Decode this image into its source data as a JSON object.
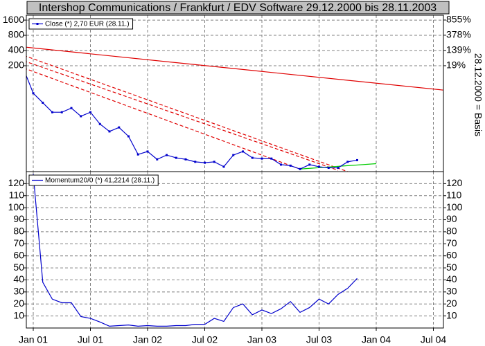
{
  "chart_data": [
    {
      "type": "line",
      "title": "Intershop Communications / Frankfurt / EDV Software 29.12.2000 bis 28.11.2003",
      "scale": "log",
      "grid": true,
      "legend": "top-left",
      "x": [
        "2000-12",
        "2001-01",
        "2001-02",
        "2001-03",
        "2001-04",
        "2001-05",
        "2001-06",
        "2001-07",
        "2001-08",
        "2001-09",
        "2001-10",
        "2001-11",
        "2001-12",
        "2002-01",
        "2002-02",
        "2002-03",
        "2002-04",
        "2002-05",
        "2002-06",
        "2002-07",
        "2002-08",
        "2002-09",
        "2002-10",
        "2002-11",
        "2002-12",
        "2003-01",
        "2003-02",
        "2003-03",
        "2003-04",
        "2003-05",
        "2003-06",
        "2003-07",
        "2003-08",
        "2003-09",
        "2003-10",
        "2003-11"
      ],
      "series": [
        {
          "name": "Close (*) 2,70 EUR (28.11.)",
          "color": "#0000cc",
          "marker": "square",
          "values": [
            170,
            57,
            37,
            24,
            24,
            29,
            20,
            24,
            14,
            10,
            12,
            8,
            3.5,
            4,
            2.8,
            3.4,
            3,
            2.8,
            2.5,
            2.4,
            2.5,
            2,
            3.4,
            4,
            3,
            2.9,
            2.9,
            2.2,
            2.1,
            1.8,
            2.2,
            2,
            1.9,
            1.9,
            2.5,
            2.7
          ]
        }
      ],
      "lines": [
        {
          "color": "#e00000",
          "style": "solid",
          "x": [
            "2000-12",
            "2004-08"
          ],
          "values": [
            470,
            66
          ]
        },
        {
          "color": "#e00000",
          "style": "dashed",
          "x": [
            "2000-12",
            "2003-10"
          ],
          "values": [
            320,
            1.6
          ]
        },
        {
          "color": "#e00000",
          "style": "dashed",
          "x": [
            "2000-12",
            "2003-09"
          ],
          "values": [
            250,
            1.7
          ]
        },
        {
          "color": "#e00000",
          "style": "dashed",
          "x": [
            "2000-12",
            "2003-05"
          ],
          "values": [
            180,
            1.8
          ]
        },
        {
          "color": "#00cc00",
          "style": "solid",
          "x": [
            "2003-05",
            "2004-01"
          ],
          "values": [
            1.8,
            2.3
          ]
        }
      ],
      "ylim": [
        1.6,
        2000
      ],
      "yticks": [
        200,
        400,
        800,
        1600
      ],
      "y2label": "28.12.2000 = Basis",
      "y2scale": "log-relative",
      "y2lim": [
        -99.05,
        1090
      ],
      "y2ticks": [
        {
          "value": 19,
          "label": "19%"
        },
        {
          "value": 139,
          "label": "139%"
        },
        {
          "value": 378,
          "label": "378%"
        },
        {
          "value": 855,
          "label": "855%"
        }
      ]
    },
    {
      "type": "line",
      "grid": true,
      "legend": "top-left",
      "x": [
        "2001-01",
        "2001-02",
        "2001-03",
        "2001-04",
        "2001-05",
        "2001-06",
        "2001-07",
        "2001-08",
        "2001-09",
        "2001-10",
        "2001-11",
        "2001-12",
        "2002-01",
        "2002-02",
        "2002-03",
        "2002-04",
        "2002-05",
        "2002-06",
        "2002-07",
        "2002-08",
        "2002-09",
        "2002-10",
        "2002-11",
        "2002-12",
        "2003-01",
        "2003-02",
        "2003-03",
        "2003-04",
        "2003-05",
        "2003-06",
        "2003-07",
        "2003-08",
        "2003-09",
        "2003-10",
        "2003-11"
      ],
      "series": [
        {
          "name": "Momentum20/0 (*) 41,2214 (28.11.)",
          "color": "#0000cc",
          "values": [
            128,
            38,
            24,
            21,
            21,
            9.5,
            8,
            5,
            1.5,
            2,
            2.5,
            1.5,
            2,
            1.5,
            1.5,
            2,
            2,
            3,
            3,
            8,
            5.5,
            17,
            20,
            11,
            15,
            12,
            16,
            22,
            13,
            17,
            24,
            20,
            28,
            33,
            41.2214
          ]
        }
      ],
      "ylim": [
        0,
        130
      ],
      "yticks": [
        10,
        20,
        30,
        40,
        50,
        60,
        70,
        80,
        90,
        100,
        110,
        120
      ],
      "xticks": [
        {
          "value": "2001-01",
          "label": "Jan 01"
        },
        {
          "value": "2001-07",
          "label": "Jul 01"
        },
        {
          "value": "2002-01",
          "label": "Jan 02"
        },
        {
          "value": "2002-07",
          "label": "Jul 02"
        },
        {
          "value": "2003-01",
          "label": "Jan 03"
        },
        {
          "value": "2003-07",
          "label": "Jul 03"
        },
        {
          "value": "2004-01",
          "label": "Jan 04"
        },
        {
          "value": "2004-07",
          "label": "Jul 04"
        }
      ]
    }
  ]
}
